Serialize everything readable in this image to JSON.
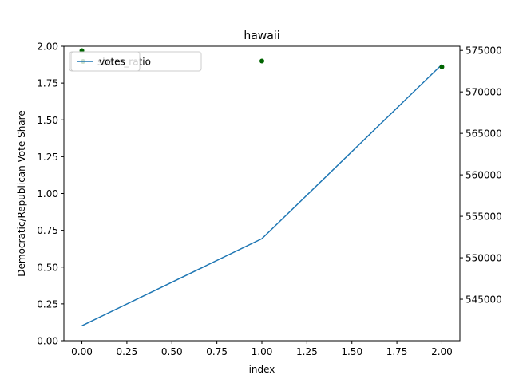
{
  "chart_data": {
    "type": "line",
    "title": "hawaii",
    "xlabel": "index",
    "ylabel": "Democratic/Republican Vote Share",
    "y2label": "",
    "xlim": [
      -0.1,
      2.1
    ],
    "ylim": [
      0,
      2.0
    ],
    "y2lim": [
      540000,
      575500
    ],
    "xticks": [
      0.0,
      0.25,
      0.5,
      0.75,
      1.0,
      1.25,
      1.5,
      1.75,
      2.0
    ],
    "xtick_labels": [
      "0.00",
      "0.25",
      "0.50",
      "0.75",
      "1.00",
      "1.25",
      "1.50",
      "1.75",
      "2.00"
    ],
    "yticks": [
      0.0,
      0.25,
      0.5,
      0.75,
      1.0,
      1.25,
      1.5,
      1.75,
      2.0
    ],
    "ytick_labels": [
      "0.00",
      "0.25",
      "0.50",
      "0.75",
      "1.00",
      "1.25",
      "1.50",
      "1.75",
      "2.00"
    ],
    "y2ticks": [
      545000,
      550000,
      555000,
      560000,
      565000,
      570000,
      575000
    ],
    "y2tick_labels": [
      "545000",
      "550000",
      "555000",
      "560000",
      "565000",
      "570000",
      "575000"
    ],
    "series": [
      {
        "name": "votes",
        "kind": "line",
        "axis": "y2",
        "color": "#1f77b4",
        "x": [
          0,
          1,
          2
        ],
        "values": [
          541800,
          552300,
          573300
        ]
      },
      {
        "name": "share_ratio",
        "kind": "scatter",
        "axis": "y",
        "color": "#006400",
        "x": [
          0,
          1,
          2
        ],
        "values": [
          1.97,
          1.9,
          1.86
        ]
      }
    ],
    "legends": [
      {
        "label": "votes",
        "series": 0
      },
      {
        "label": "share_ratio",
        "series": 1
      }
    ],
    "legend_location": "upper-left",
    "grid": false
  }
}
